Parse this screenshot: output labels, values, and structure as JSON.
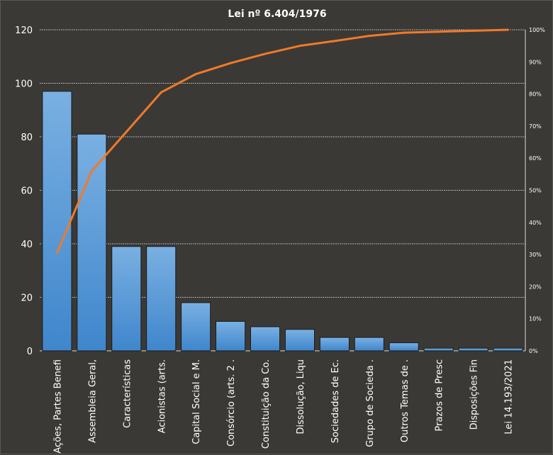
{
  "chart_data": {
    "type": "bar",
    "title": "Lei nº 6.404/1976",
    "categories": [
      "Ações, Partes Benefi",
      "Assembleia Geral,",
      "Características",
      "Acionistas (arts.",
      "Capital Social e M.",
      "Consórcio (arts. 2 .",
      "Constituição da Co.",
      "Dissolução, Liqu",
      "Sociedades de Ec.",
      "Grupo de Socieda .",
      "Outros Temas de .",
      "Prazos de Presc",
      "Disposições Fin",
      "Lei 14.193/2021"
    ],
    "values": [
      97,
      81,
      39,
      39,
      18,
      11,
      9,
      8,
      5,
      5,
      3,
      1,
      1,
      1
    ],
    "cumulative_percent": [
      30.5,
      56.0,
      68.2,
      80.5,
      86.2,
      89.6,
      92.5,
      95.0,
      96.5,
      98.1,
      99.1,
      99.4,
      99.7,
      100
    ],
    "ylim": [
      0,
      120
    ],
    "yticks": [
      "0",
      "20",
      "40",
      "60",
      "80",
      "100",
      "120"
    ],
    "y2lim": [
      0,
      100
    ],
    "y2ticks": [
      "0%",
      "10%",
      "20%",
      "30%",
      "40%",
      "50%",
      "60%",
      "70%",
      "80%",
      "90%",
      "100%"
    ],
    "grid": true,
    "colors": {
      "bar": "#4a90d4",
      "bar_light": "#7ab0e2",
      "line": "#f07a28",
      "background": "#3b3936"
    }
  }
}
